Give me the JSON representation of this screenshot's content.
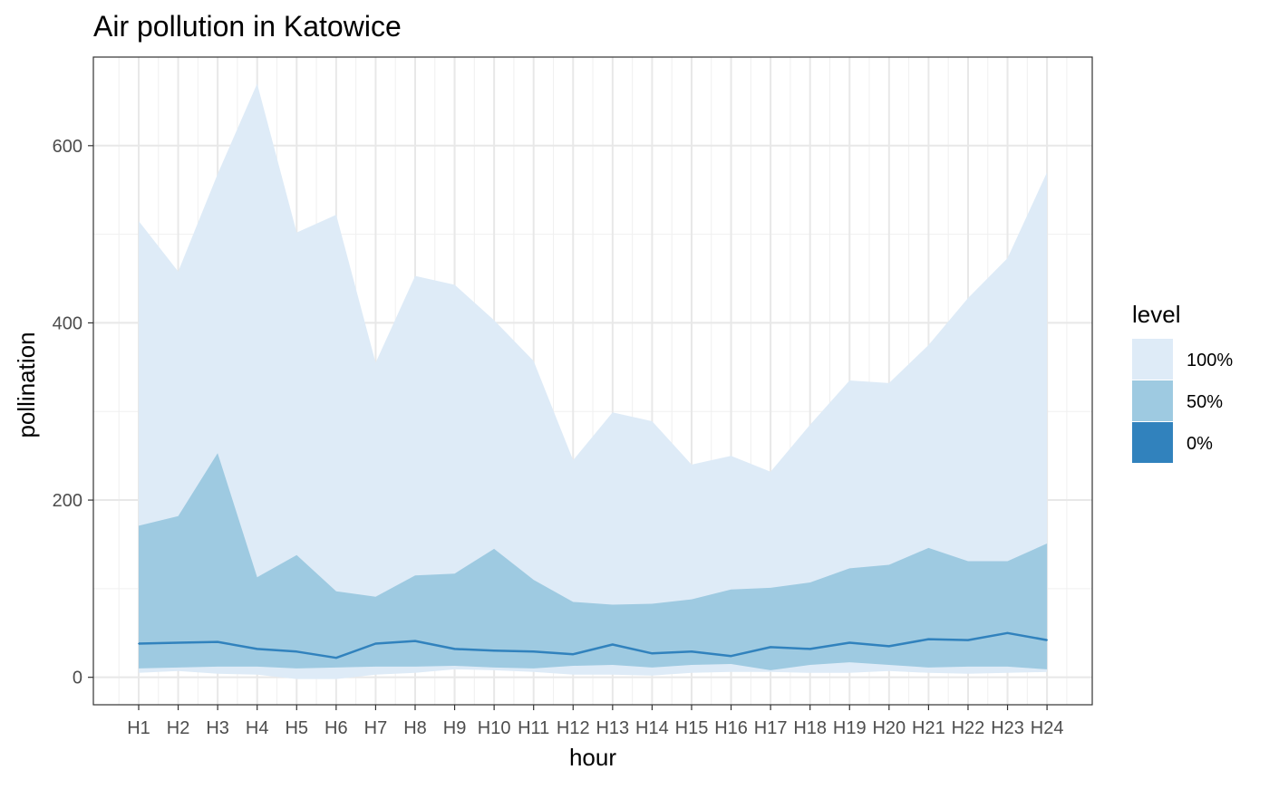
{
  "chart_data": {
    "type": "area",
    "title": "Air pollution in Katowice",
    "xlabel": "hour",
    "ylabel": "pollination",
    "categories": [
      "H1",
      "H2",
      "H3",
      "H4",
      "H5",
      "H6",
      "H7",
      "H8",
      "H9",
      "H10",
      "H11",
      "H12",
      "H13",
      "H14",
      "H15",
      "H16",
      "H17",
      "H18",
      "H19",
      "H20",
      "H21",
      "H22",
      "H23",
      "H24"
    ],
    "y_ticks": [
      0,
      200,
      400,
      600
    ],
    "ylim": [
      -31,
      700
    ],
    "grid": true,
    "legend_position": "right",
    "legend_title": "level",
    "bands": [
      {
        "name": "100%",
        "color": "#deebf7",
        "lower": [
          5,
          7,
          4,
          3,
          -2,
          -2,
          3,
          5,
          9,
          8,
          6,
          3,
          3,
          2,
          5,
          6,
          6,
          5,
          5,
          7,
          5,
          4,
          5,
          6
        ],
        "upper": [
          515,
          458,
          568,
          670,
          502,
          522,
          355,
          453,
          443,
          403,
          357,
          245,
          299,
          289,
          240,
          250,
          232,
          285,
          335,
          332,
          375,
          428,
          473,
          570
        ]
      },
      {
        "name": "50%",
        "color": "#9ecae1",
        "lower": [
          10,
          11,
          12,
          12,
          10,
          11,
          12,
          12,
          13,
          11,
          10,
          13,
          14,
          11,
          14,
          15,
          8,
          14,
          17,
          14,
          11,
          12,
          12,
          9
        ],
        "upper": [
          171,
          182,
          253,
          113,
          138,
          97,
          91,
          115,
          117,
          145,
          110,
          85,
          82,
          83,
          88,
          99,
          101,
          107,
          123,
          127,
          146,
          131,
          131,
          151
        ]
      }
    ],
    "series": [
      {
        "name": "0%",
        "color": "#3182bd",
        "values": [
          38,
          39,
          40,
          32,
          29,
          22,
          38,
          41,
          32,
          30,
          29,
          26,
          37,
          27,
          29,
          24,
          34,
          32,
          39,
          35,
          43,
          42,
          50,
          42
        ]
      }
    ]
  }
}
